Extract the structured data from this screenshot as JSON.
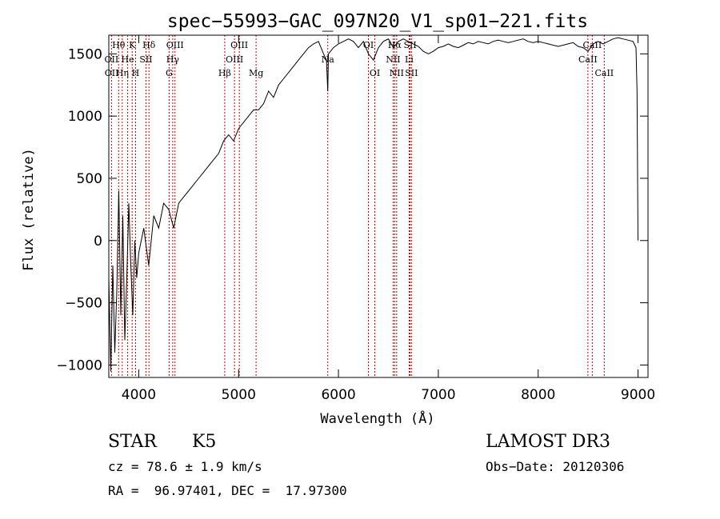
{
  "chart_data": {
    "type": "line",
    "title": "spec−55993−GAC_097N20_V1_sp01−221.fits",
    "xlabel": "Wavelength (Å)",
    "ylabel": "Flux (relative)",
    "xlim": [
      3700,
      9100
    ],
    "ylim": [
      -1100,
      1650
    ],
    "x_ticks": [
      4000,
      5000,
      6000,
      7000,
      8000,
      9000
    ],
    "x_tick_labels": [
      "4000",
      "5000",
      "6000",
      "7000",
      "8000",
      "9000"
    ],
    "y_ticks": [
      -1000,
      -500,
      0,
      500,
      1000,
      1500
    ],
    "y_tick_labels": [
      "−1000",
      "−500",
      "0",
      "500",
      "1000",
      "1500"
    ],
    "series": [
      {
        "name": "flux",
        "color": "#000000",
        "x": [
          3700,
          3720,
          3740,
          3760,
          3780,
          3800,
          3820,
          3840,
          3860,
          3880,
          3900,
          3920,
          3940,
          3960,
          3980,
          4000,
          4050,
          4100,
          4150,
          4200,
          4250,
          4300,
          4350,
          4400,
          4450,
          4500,
          4550,
          4600,
          4650,
          4700,
          4750,
          4800,
          4850,
          4900,
          4950,
          5000,
          5050,
          5100,
          5150,
          5200,
          5250,
          5300,
          5350,
          5400,
          5450,
          5500,
          5550,
          5600,
          5650,
          5700,
          5750,
          5800,
          5850,
          5880,
          5893,
          5900,
          5950,
          6000,
          6050,
          6100,
          6150,
          6200,
          6250,
          6300,
          6350,
          6400,
          6450,
          6500,
          6550,
          6600,
          6650,
          6700,
          6750,
          6800,
          6850,
          6900,
          6950,
          7000,
          7050,
          7100,
          7150,
          7200,
          7250,
          7300,
          7350,
          7400,
          7450,
          7500,
          7550,
          7600,
          7650,
          7700,
          7750,
          7800,
          7850,
          7900,
          7950,
          8000,
          8050,
          8100,
          8150,
          8200,
          8250,
          8300,
          8350,
          8400,
          8450,
          8500,
          8550,
          8600,
          8650,
          8700,
          8750,
          8800,
          8850,
          8900,
          8950,
          8980,
          8990,
          9000
        ],
        "y": [
          -300,
          -1050,
          -200,
          -900,
          -400,
          400,
          -600,
          200,
          -800,
          -300,
          300,
          -200,
          -600,
          0,
          -300,
          -100,
          100,
          -200,
          200,
          100,
          300,
          250,
          100,
          300,
          350,
          400,
          450,
          500,
          550,
          600,
          650,
          700,
          800,
          850,
          800,
          900,
          950,
          1000,
          1050,
          1050,
          1100,
          1200,
          1150,
          1250,
          1300,
          1350,
          1400,
          1450,
          1500,
          1550,
          1580,
          1600,
          1500,
          1450,
          1200,
          1500,
          1550,
          1580,
          1600,
          1620,
          1600,
          1550,
          1600,
          1500,
          1450,
          1550,
          1600,
          1620,
          1550,
          1600,
          1620,
          1600,
          1580,
          1560,
          1520,
          1500,
          1520,
          1550,
          1560,
          1580,
          1560,
          1550,
          1570,
          1590,
          1580,
          1600,
          1590,
          1580,
          1600,
          1610,
          1600,
          1590,
          1600,
          1610,
          1620,
          1600,
          1590,
          1600,
          1590,
          1580,
          1570,
          1560,
          1570,
          1580,
          1590,
          1560,
          1550,
          1520,
          1580,
          1600,
          1580,
          1600,
          1620,
          1630,
          1620,
          1610,
          1600,
          1550,
          1200,
          0
        ]
      }
    ],
    "line_labels": [
      {
        "label": "Hθ",
        "wavelength": 3798,
        "row": 1
      },
      {
        "label": "K",
        "wavelength": 3934,
        "row": 1
      },
      {
        "label": "Hδ",
        "wavelength": 4102,
        "row": 1
      },
      {
        "label": "OIII",
        "wavelength": 4363,
        "row": 1
      },
      {
        "label": "OIII",
        "wavelength": 5007,
        "row": 1
      },
      {
        "label": "OI",
        "wavelength": 6300,
        "row": 1
      },
      {
        "label": "Hα",
        "wavelength": 6563,
        "row": 1
      },
      {
        "label": "SII",
        "wavelength": 6717,
        "row": 1
      },
      {
        "label": "CaII",
        "wavelength": 8542,
        "row": 1
      },
      {
        "label": "OII",
        "wavelength": 3727,
        "row": 2
      },
      {
        "label": "He",
        "wavelength": 3889,
        "row": 2
      },
      {
        "label": "SII",
        "wavelength": 4072,
        "row": 2
      },
      {
        "label": "Hγ",
        "wavelength": 4340,
        "row": 2
      },
      {
        "label": "OIII",
        "wavelength": 4959,
        "row": 2
      },
      {
        "label": "NII",
        "wavelength": 6548,
        "row": 2
      },
      {
        "label": "Li",
        "wavelength": 6708,
        "row": 2
      },
      {
        "label": "CaII",
        "wavelength": 8498,
        "row": 2
      },
      {
        "label": "OII",
        "wavelength": 3729,
        "row": 3
      },
      {
        "label": "Hη",
        "wavelength": 3835,
        "row": 3
      },
      {
        "label": "H",
        "wavelength": 3968,
        "row": 3
      },
      {
        "label": "G",
        "wavelength": 4304,
        "row": 3
      },
      {
        "label": "Hβ",
        "wavelength": 4861,
        "row": 3
      },
      {
        "label": "Mg",
        "wavelength": 5175,
        "row": 3
      },
      {
        "label": "OI",
        "wavelength": 6364,
        "row": 3
      },
      {
        "label": "NII",
        "wavelength": 6583,
        "row": 3
      },
      {
        "label": "SII",
        "wavelength": 6731,
        "row": 3
      },
      {
        "label": "CaII",
        "wavelength": 8662,
        "row": 3
      },
      {
        "label": "Na",
        "wavelength": 5893,
        "row": 0
      }
    ],
    "line_marker_wavelengths": [
      3727,
      3798,
      3835,
      3889,
      3934,
      3968,
      4072,
      4102,
      4304,
      4340,
      4363,
      4861,
      4959,
      5007,
      5175,
      5893,
      6300,
      6364,
      6548,
      6563,
      6583,
      6708,
      6717,
      6731,
      8498,
      8542,
      8662
    ]
  },
  "info": {
    "object_class": "STAR",
    "subclass": "K5",
    "survey": "LAMOST DR3",
    "cz": "cz = 78.6 ± 1.9 km/s",
    "obs_date": "Obs−Date: 20120306",
    "coords": "RA =  96.97401, DEC =  17.97300"
  }
}
